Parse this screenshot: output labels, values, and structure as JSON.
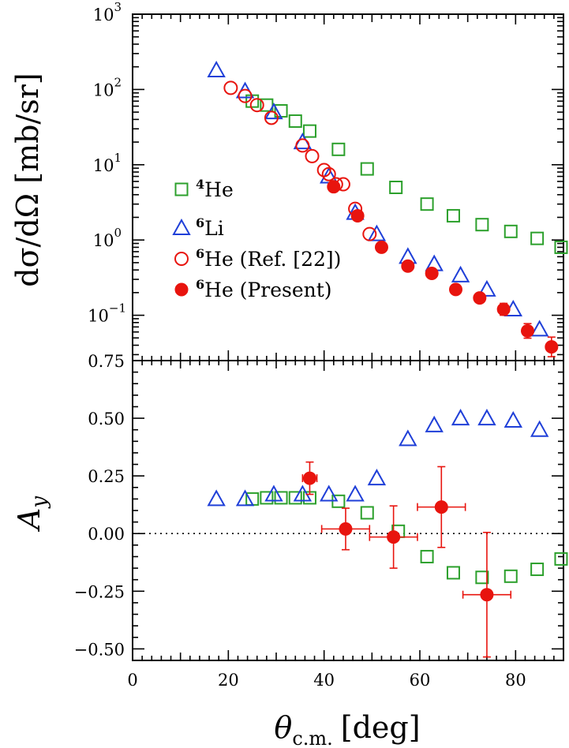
{
  "chart_data": [
    {
      "panel": "cross-section",
      "type": "scatter",
      "yscale": "log",
      "xlim": [
        0,
        90
      ],
      "ylim": [
        0.025,
        1000
      ],
      "ylabel": "dσ/dΩ [mb/sr]",
      "xlabel": "θ",
      "xlabel_sub": "c.m.",
      "xlabel_unit": "[deg]",
      "y_tick_labels": [
        {
          "value": 1000,
          "base": "10",
          "exp": "3"
        },
        {
          "value": 100,
          "base": "10",
          "exp": "2"
        },
        {
          "value": 10,
          "base": "10",
          "exp": "1"
        },
        {
          "value": 1,
          "base": "10",
          "exp": "0"
        },
        {
          "value": 0.1,
          "base": "10",
          "exp": "−1"
        }
      ],
      "series": [
        {
          "name": "4He",
          "legend_sup": "4",
          "legend_text": "He",
          "marker": "open-square",
          "color": "#2ca02c",
          "x": [
            25,
            28,
            31,
            34,
            37,
            43,
            49,
            55,
            61.5,
            67,
            73,
            79,
            84.5,
            89.5
          ],
          "y": [
            70,
            62,
            52,
            38,
            28,
            16,
            8.8,
            5,
            3,
            2.1,
            1.6,
            1.3,
            1.05,
            0.8
          ]
        },
        {
          "name": "6Li",
          "legend_sup": "6",
          "legend_text": "Li",
          "marker": "open-triangle",
          "color": "#1f3fd8",
          "x": [
            17.5,
            23.5,
            29.5,
            35.5,
            41,
            46.5,
            51,
            57.5,
            63,
            68.5,
            74,
            79.5,
            85
          ],
          "y": [
            180,
            95,
            50,
            20,
            7,
            2.3,
            1.2,
            0.6,
            0.48,
            0.34,
            0.22,
            0.12,
            0.065
          ]
        },
        {
          "name": "6He Ref22",
          "legend_sup": "6",
          "legend_text": "He (Ref. [22])",
          "marker": "open-circle",
          "color": "#e8140e",
          "x": [
            20.5,
            23.5,
            26,
            29,
            35.5,
            37.5,
            40,
            41,
            42.5,
            44,
            46.5,
            49.5
          ],
          "y": [
            105,
            82,
            62,
            42,
            18,
            13,
            8.5,
            7.5,
            5.5,
            5.5,
            2.6,
            1.2
          ]
        },
        {
          "name": "6He Present",
          "legend_sup": "6",
          "legend_text": "He (Present)",
          "marker": "filled-circle",
          "color": "#e8140e",
          "x": [
            42,
            47,
            52,
            57.5,
            62.5,
            67.5,
            72.5,
            77.5,
            82.5,
            87.5
          ],
          "y": [
            5.1,
            2.1,
            0.8,
            0.45,
            0.36,
            0.22,
            0.17,
            0.12,
            0.062,
            0.038
          ],
          "yerr_factor": [
            1.06,
            1.06,
            1.07,
            1.09,
            1.1,
            1.13,
            1.15,
            1.2,
            1.25,
            1.35
          ],
          "xerr": [
            0.8,
            0.8,
            0.8,
            0.8,
            0.8,
            0.8,
            0.8,
            0.8,
            0.8,
            0.8
          ]
        }
      ]
    },
    {
      "panel": "analyzing-power",
      "type": "scatter",
      "xlim": [
        0,
        90
      ],
      "ylim": [
        -0.55,
        0.75
      ],
      "ylabel": "A",
      "ylabel_sub": "y",
      "y_ticks": [
        0.75,
        0.5,
        0.25,
        0,
        -0.25,
        -0.5
      ],
      "y_tick_labels": [
        "0.75",
        "0.50",
        "0.25",
        "0.00",
        "−0.25",
        "−0.50"
      ],
      "x_ticks": [
        0,
        20,
        40,
        60,
        80
      ],
      "x_tick_labels": [
        "0",
        "20",
        "40",
        "60",
        "80"
      ],
      "zero_line": "dotted",
      "series": [
        {
          "name": "4He",
          "marker": "open-square",
          "color": "#2ca02c",
          "x": [
            25,
            28,
            31,
            34,
            37,
            43,
            49,
            55.5,
            61.5,
            67,
            73,
            79,
            84.5,
            89.5
          ],
          "y": [
            0.15,
            0.155,
            0.155,
            0.155,
            0.155,
            0.14,
            0.09,
            0.01,
            -0.1,
            -0.17,
            -0.19,
            -0.185,
            -0.155,
            -0.11
          ]
        },
        {
          "name": "6Li",
          "marker": "open-triangle",
          "color": "#1f3fd8",
          "x": [
            17.5,
            23.5,
            29.5,
            35.5,
            41,
            46.5,
            51,
            57.5,
            63,
            68.5,
            74,
            79.5,
            85
          ],
          "y": [
            0.15,
            0.15,
            0.17,
            0.17,
            0.17,
            0.17,
            0.24,
            0.41,
            0.47,
            0.5,
            0.5,
            0.49,
            0.45
          ]
        },
        {
          "name": "6He Present",
          "marker": "filled-circle",
          "color": "#e8140e",
          "x": [
            37,
            44.5,
            54.5,
            64.5,
            74
          ],
          "y": [
            0.24,
            0.02,
            -0.015,
            0.115,
            -0.265
          ],
          "xerr": [
            1.5,
            5,
            5,
            5,
            5
          ],
          "yerr": [
            0.07,
            0.09,
            0.135,
            0.175,
            0.27
          ]
        }
      ]
    }
  ]
}
